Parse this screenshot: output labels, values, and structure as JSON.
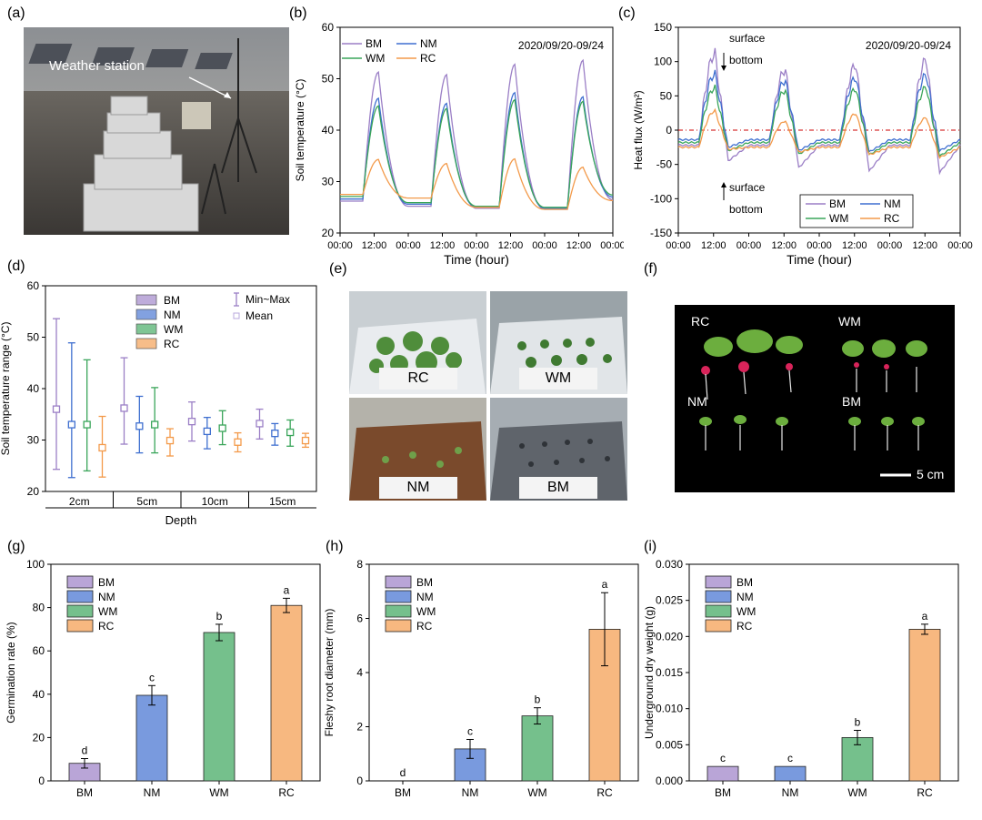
{
  "figure": {
    "panel_labels": [
      "(a)",
      "(b)",
      "(c)",
      "(d)",
      "(e)",
      "(f)",
      "(g)",
      "(h)",
      "(i)"
    ],
    "photo_a": {
      "annotation": "Weather station"
    },
    "photo_e": {
      "captions": [
        "RC",
        "WM",
        "NM",
        "BM"
      ]
    },
    "photo_f": {
      "labels": [
        "RC",
        "WM",
        "NM",
        "BM"
      ],
      "scale_label": "5 cm"
    }
  },
  "colors": {
    "BM": "#9b7fc6",
    "NM": "#3f6fd0",
    "WM": "#3aa55a",
    "RC": "#f39a4a"
  },
  "chart_data": [
    {
      "id": "b",
      "type": "line",
      "title": "",
      "annotation": "2020/09/20-09/24",
      "xlabel": "Time (hour)",
      "ylabel": "Soil temperature (°C)",
      "xticks": [
        "00:00",
        "12:00",
        "00:00",
        "12:00",
        "00:00",
        "12:00",
        "00:00",
        "12:00",
        "00:00"
      ],
      "xlim": [
        0,
        96
      ],
      "ylim": [
        20,
        60
      ],
      "yticks": [
        20,
        30,
        40,
        50,
        60
      ],
      "legend": [
        "BM",
        "NM",
        "WM",
        "RC"
      ],
      "series": [
        {
          "name": "BM",
          "peaks": [
            51.3,
            50.8,
            52.8,
            53.6
          ],
          "troughs": [
            26.2,
            25.2,
            24.8,
            24.6,
            26.5
          ]
        },
        {
          "name": "NM",
          "peaks": [
            46.2,
            45.2,
            47.3,
            46.5
          ],
          "troughs": [
            26.6,
            25.6,
            25.0,
            24.8,
            27.0
          ]
        },
        {
          "name": "WM",
          "peaks": [
            44.7,
            44.2,
            45.9,
            45.6
          ],
          "troughs": [
            27.1,
            25.9,
            25.2,
            25.0,
            27.4
          ]
        },
        {
          "name": "RC",
          "peaks": [
            34.3,
            33.5,
            34.4,
            32.8
          ],
          "troughs": [
            27.5,
            26.8,
            25.0,
            24.6,
            26.3
          ]
        }
      ]
    },
    {
      "id": "c",
      "type": "line",
      "annotation": "2020/09/20-09/24",
      "xlabel": "Time (hour)",
      "ylabel": "Heat flux (W/m²)",
      "xticks": [
        "00:00",
        "12:00",
        "00:00",
        "12:00",
        "00:00",
        "12:00",
        "00:00",
        "12:00",
        "00:00"
      ],
      "xlim": [
        0,
        96
      ],
      "ylim": [
        -150,
        150
      ],
      "yticks": [
        -150,
        -100,
        -50,
        0,
        50,
        100,
        150
      ],
      "arrows": {
        "top_up": "surface",
        "top_down": "bottom",
        "bottom_up": "surface",
        "bottom_down": "bottom"
      },
      "legend": [
        "BM",
        "NM",
        "WM",
        "RC"
      ],
      "series": [
        {
          "name": "BM",
          "peaks": [
            112,
            88,
            95,
            102
          ],
          "troughs": [
            -45,
            -55,
            -60,
            -62
          ],
          "base": -22
        },
        {
          "name": "NM",
          "peaks": [
            82,
            72,
            76,
            80
          ],
          "troughs": [
            -25,
            -30,
            -32,
            -30
          ],
          "base": -14
        },
        {
          "name": "WM",
          "peaks": [
            62,
            58,
            60,
            62
          ],
          "troughs": [
            -30,
            -35,
            -36,
            -38
          ],
          "base": -18
        },
        {
          "name": "RC",
          "peaks": [
            28,
            13,
            24,
            18
          ],
          "troughs": [
            -28,
            -32,
            -36,
            -40
          ],
          "base": -25
        }
      ]
    },
    {
      "id": "d",
      "type": "range",
      "xlabel": "Depth",
      "ylabel": "Soil temperature range (°C)",
      "categories": [
        "2cm",
        "5cm",
        "10cm",
        "15cm"
      ],
      "ylim": [
        20,
        60
      ],
      "yticks": [
        20,
        30,
        40,
        50,
        60
      ],
      "legend": [
        "BM",
        "NM",
        "WM",
        "RC"
      ],
      "legend_extra": [
        "Min~Max",
        "Mean"
      ],
      "series": [
        {
          "name": "BM",
          "min": [
            24.3,
            29.2,
            29.8,
            30.2
          ],
          "max": [
            53.6,
            46.0,
            37.4,
            36.0
          ],
          "mean": [
            36.0,
            36.2,
            33.6,
            33.2
          ]
        },
        {
          "name": "NM",
          "min": [
            22.7,
            27.5,
            28.3,
            29.0
          ],
          "max": [
            48.9,
            38.5,
            34.4,
            33.2
          ],
          "mean": [
            33.0,
            32.7,
            31.7,
            31.3
          ]
        },
        {
          "name": "WM",
          "min": [
            24.0,
            27.5,
            29.1,
            28.8
          ],
          "max": [
            45.6,
            40.2,
            35.7,
            33.9
          ],
          "mean": [
            33.0,
            33.0,
            32.3,
            31.5
          ]
        },
        {
          "name": "RC",
          "min": [
            22.8,
            26.9,
            27.7,
            28.6
          ],
          "max": [
            34.6,
            32.2,
            31.4,
            31.3
          ],
          "mean": [
            28.5,
            29.9,
            29.6,
            29.9
          ]
        }
      ]
    },
    {
      "id": "g",
      "type": "bar",
      "ylabel": "Germination rate (%)",
      "categories": [
        "BM",
        "NM",
        "WM",
        "RC"
      ],
      "values": [
        8.1,
        39.5,
        68.5,
        81.0
      ],
      "errors": [
        2.2,
        4.5,
        3.8,
        3.3
      ],
      "letters": [
        "d",
        "c",
        "b",
        "a"
      ],
      "ylim": [
        0,
        100
      ],
      "yticks": [
        "0",
        "20",
        "40",
        "60",
        "80",
        "100"
      ],
      "legend": [
        "BM",
        "NM",
        "WM",
        "RC"
      ]
    },
    {
      "id": "h",
      "type": "bar",
      "ylabel": "Fleshy root diameter (mm)",
      "categories": [
        "BM",
        "NM",
        "WM",
        "RC"
      ],
      "values": [
        0,
        1.18,
        2.4,
        5.6
      ],
      "errors": [
        0,
        0.35,
        0.3,
        1.35
      ],
      "letters": [
        "d",
        "c",
        "b",
        "a"
      ],
      "ylim": [
        0,
        8
      ],
      "yticks": [
        "0",
        "2",
        "4",
        "6",
        "8"
      ],
      "legend": [
        "BM",
        "NM",
        "WM",
        "RC"
      ]
    },
    {
      "id": "i",
      "type": "bar",
      "ylabel": "Underground dry weight (g)",
      "categories": [
        "BM",
        "NM",
        "WM",
        "RC"
      ],
      "values": [
        0.002,
        0.002,
        0.006,
        0.021
      ],
      "errors": [
        0,
        0,
        0.001,
        0.0007
      ],
      "letters": [
        "c",
        "c",
        "b",
        "a"
      ],
      "ylim": [
        0,
        0.03
      ],
      "yticks": [
        "0.000",
        "0.005",
        "0.010",
        "0.015",
        "0.020",
        "0.025",
        "0.030"
      ],
      "legend": [
        "BM",
        "NM",
        "WM",
        "RC"
      ]
    }
  ]
}
